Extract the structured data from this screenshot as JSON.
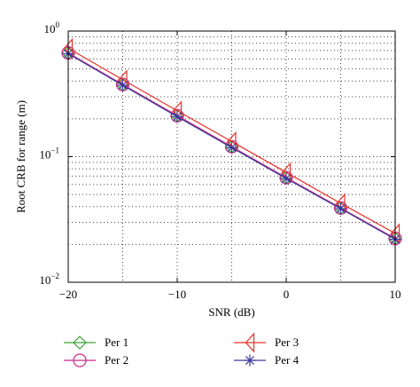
{
  "chart_data": {
    "type": "line",
    "xlabel": "SNR (dB)",
    "ylabel": "Root CRB for range (m)",
    "xlim": [
      -20,
      10
    ],
    "ylim": [
      0.01,
      1
    ],
    "yscale": "log",
    "grid": true,
    "legend_position": "bottom, outside plot",
    "x_ticks": [
      {
        "value": -20,
        "label": "−20"
      },
      {
        "value": -10,
        "label": "−10"
      },
      {
        "value": 0,
        "label": "0"
      },
      {
        "value": 10,
        "label": "10"
      }
    ],
    "y_ticks": [
      {
        "value": 1,
        "base": "10",
        "exp": "0"
      },
      {
        "value": 0.1,
        "base": "10",
        "exp": "−1"
      },
      {
        "value": 0.01,
        "base": "10",
        "exp": "−2"
      }
    ],
    "x": [
      -20,
      -15,
      -10,
      -5,
      0,
      5,
      10
    ],
    "series": [
      {
        "name": "Per 1",
        "color": "#3aa535",
        "marker": "diamond",
        "values": [
          0.67,
          0.375,
          0.212,
          0.12,
          0.068,
          0.039,
          0.0223
        ]
      },
      {
        "name": "Per 2",
        "color": "#cc2a8a",
        "marker": "circle",
        "values": [
          0.67,
          0.375,
          0.212,
          0.12,
          0.068,
          0.039,
          0.0223
        ]
      },
      {
        "name": "Per 3",
        "color": "#e8312a",
        "marker": "triangle-left",
        "values": [
          0.73,
          0.41,
          0.232,
          0.132,
          0.075,
          0.0425,
          0.0245
        ]
      },
      {
        "name": "Per 4",
        "color": "#3a3a9a",
        "marker": "asterisk",
        "values": [
          0.66,
          0.37,
          0.208,
          0.118,
          0.067,
          0.0385,
          0.022
        ]
      }
    ]
  }
}
